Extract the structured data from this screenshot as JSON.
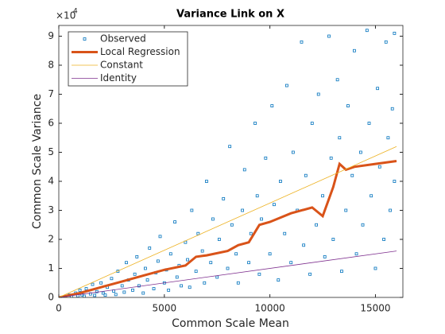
{
  "chart_data": {
    "type": "scatter",
    "title": "Variance Link on X",
    "x_label": "Common Scale Mean",
    "y_label": "Common Scale Variance",
    "y_multiplier": {
      "base": "×10",
      "exponent": "4"
    },
    "xlim": [
      0,
      16300
    ],
    "ylim": [
      0,
      93700
    ],
    "xticks": [
      0,
      5000,
      10000,
      15000
    ],
    "yticks": [
      0,
      {
        "value": 10000,
        "label": "1"
      },
      {
        "value": 20000,
        "label": "2"
      },
      {
        "value": 30000,
        "label": "3"
      },
      {
        "value": 40000,
        "label": "4"
      },
      {
        "value": 50000,
        "label": "5"
      },
      {
        "value": 60000,
        "label": "6"
      },
      {
        "value": 70000,
        "label": "7"
      },
      {
        "value": 80000,
        "label": "8"
      },
      {
        "value": 90000,
        "label": "9"
      }
    ],
    "legend": "upper left",
    "series": [
      {
        "name": "Observed",
        "style": "markers",
        "color": "#0072BD",
        "x": [
          300,
          500,
          600,
          800,
          900,
          1000,
          1100,
          1200,
          1300,
          1500,
          1600,
          1700,
          1800,
          2000,
          2100,
          2200,
          2300,
          2500,
          2600,
          2700,
          2800,
          3000,
          3100,
          3200,
          3300,
          3500,
          3600,
          3700,
          3800,
          4000,
          4100,
          4200,
          4300,
          4500,
          4600,
          4700,
          4800,
          5000,
          5100,
          5200,
          5300,
          5500,
          5600,
          5700,
          5800,
          6000,
          6100,
          6200,
          6300,
          6500,
          6600,
          6800,
          6900,
          7000,
          7200,
          7300,
          7500,
          7600,
          7800,
          8000,
          8100,
          8200,
          8400,
          8500,
          8700,
          8800,
          9000,
          9100,
          9300,
          9400,
          9500,
          9600,
          9800,
          10000,
          10100,
          10200,
          10400,
          10500,
          10700,
          10800,
          11000,
          11100,
          11300,
          11500,
          11600,
          11700,
          11900,
          12000,
          12200,
          12300,
          12500,
          12600,
          12800,
          12900,
          13000,
          13200,
          13300,
          13400,
          13600,
          13700,
          13900,
          14000,
          14100,
          14300,
          14400,
          14600,
          14700,
          14800,
          15000,
          15100,
          15200,
          15400,
          15500,
          15600,
          15700,
          15800,
          15900,
          15900
        ],
        "values": [
          200,
          800,
          300,
          1500,
          500,
          2500,
          900,
          400,
          3000,
          1200,
          4500,
          700,
          2000,
          5000,
          1500,
          800,
          3500,
          6500,
          2200,
          1000,
          9000,
          4000,
          1800,
          12000,
          6000,
          2500,
          8000,
          14000,
          4000,
          1500,
          10000,
          6000,
          17000,
          3000,
          8500,
          12500,
          21000,
          5000,
          9500,
          2500,
          15000,
          26000,
          7000,
          11000,
          4000,
          19000,
          13000,
          3500,
          30000,
          9000,
          22000,
          16000,
          5000,
          40000,
          12000,
          27000,
          7000,
          20000,
          34000,
          10000,
          52000,
          25000,
          15000,
          5000,
          30000,
          44000,
          12000,
          22000,
          60000,
          35000,
          8000,
          27000,
          48000,
          15000,
          66000,
          32000,
          6000,
          40000,
          22000,
          73000,
          12000,
          50000,
          30000,
          88000,
          18000,
          42000,
          8000,
          60000,
          25000,
          70000,
          35000,
          14000,
          90000,
          48000,
          20000,
          75000,
          55000,
          9000,
          30000,
          66000,
          42000,
          85000,
          15000,
          50000,
          25000,
          92000,
          60000,
          35000,
          10000,
          72000,
          45000,
          20000,
          88000,
          55000,
          30000,
          65000,
          40000,
          91000
        ]
      },
      {
        "name": "Local Regression",
        "style": "line",
        "line_width": 3,
        "color": "#D95319",
        "x": [
          0,
          1000,
          2000,
          3000,
          4000,
          5000,
          6000,
          6500,
          7000,
          8000,
          8500,
          9000,
          9500,
          10000,
          11000,
          12000,
          12500,
          13000,
          13300,
          13600,
          14000,
          15000,
          16000
        ],
        "values": [
          0,
          1500,
          3500,
          5500,
          7500,
          9500,
          11000,
          14000,
          14500,
          16000,
          18000,
          19000,
          25000,
          26000,
          29000,
          31000,
          28000,
          38000,
          46000,
          44000,
          45000,
          46000,
          47000
        ]
      },
      {
        "name": "Constant",
        "style": "line",
        "line_width": 0.8,
        "color": "#EDB120",
        "x": [
          0,
          16000
        ],
        "values": [
          0,
          52000
        ]
      },
      {
        "name": "Identity",
        "style": "line",
        "line_width": 0.8,
        "color": "#7E2F8E",
        "x": [
          0,
          16000
        ],
        "values": [
          0,
          16000
        ]
      }
    ]
  }
}
